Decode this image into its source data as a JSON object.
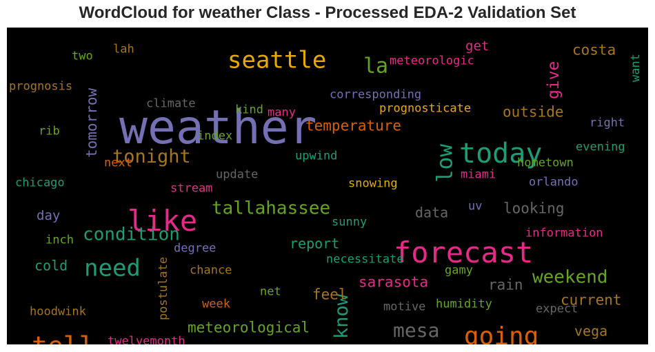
{
  "chart_data": {
    "type": "wordcloud",
    "title": "WordCloud for weather Class - Processed EDA-2 Validation Set",
    "background": "#000000",
    "palette": "Dark2",
    "words": [
      {
        "text": "weather",
        "weight": 100,
        "color": "#7570b3",
        "orientation": "horizontal"
      },
      {
        "text": "forecast",
        "weight": 62,
        "color": "#e7298a",
        "orientation": "horizontal"
      },
      {
        "text": "like",
        "weight": 62,
        "color": "#e7298a",
        "orientation": "horizontal"
      },
      {
        "text": "today",
        "weight": 60,
        "color": "#1b9e77",
        "orientation": "horizontal"
      },
      {
        "text": "tell",
        "weight": 55,
        "color": "#d95f02",
        "orientation": "horizontal"
      },
      {
        "text": "going",
        "weight": 55,
        "color": "#d95f02",
        "orientation": "horizontal"
      },
      {
        "text": "seattle",
        "weight": 50,
        "color": "#e6ab02",
        "orientation": "horizontal"
      },
      {
        "text": "need",
        "weight": 50,
        "color": "#1b9e77",
        "orientation": "horizontal"
      },
      {
        "text": "low",
        "weight": 46,
        "color": "#1b9e77",
        "orientation": "vertical"
      },
      {
        "text": "la",
        "weight": 44,
        "color": "#66a61e",
        "orientation": "horizontal"
      },
      {
        "text": "mesa",
        "weight": 42,
        "color": "#666666",
        "orientation": "horizontal"
      },
      {
        "text": "know",
        "weight": 40,
        "color": "#1b9e77",
        "orientation": "vertical"
      },
      {
        "text": "tonight",
        "weight": 40,
        "color": "#a6761d",
        "orientation": "horizontal"
      },
      {
        "text": "tallahassee",
        "weight": 38,
        "color": "#66a61e",
        "orientation": "horizontal"
      },
      {
        "text": "condition",
        "weight": 38,
        "color": "#1b9e77",
        "orientation": "horizontal"
      },
      {
        "text": "weekend",
        "weight": 38,
        "color": "#66a61e",
        "orientation": "horizontal"
      },
      {
        "text": "give",
        "weight": 34,
        "color": "#e7298a",
        "orientation": "vertical"
      },
      {
        "text": "costa",
        "weight": 31,
        "color": "#a6761d",
        "orientation": "horizontal"
      },
      {
        "text": "outside",
        "weight": 31,
        "color": "#a6761d",
        "orientation": "horizontal"
      },
      {
        "text": "temperature",
        "weight": 31,
        "color": "#d95f02",
        "orientation": "horizontal"
      },
      {
        "text": "tomorrow",
        "weight": 31,
        "color": "#7570b3",
        "orientation": "vertical"
      },
      {
        "text": "looking",
        "weight": 31,
        "color": "#666666",
        "orientation": "horizontal"
      },
      {
        "text": "meteorological",
        "weight": 31,
        "color": "#66a61e",
        "orientation": "horizontal"
      },
      {
        "text": "sarasota",
        "weight": 31,
        "color": "#e7298a",
        "orientation": "horizontal"
      },
      {
        "text": "feel",
        "weight": 31,
        "color": "#a6761d",
        "orientation": "horizontal"
      },
      {
        "text": "rain",
        "weight": 31,
        "color": "#666666",
        "orientation": "horizontal"
      },
      {
        "text": "current",
        "weight": 31,
        "color": "#a6761d",
        "orientation": "horizontal"
      },
      {
        "text": "vega",
        "weight": 29,
        "color": "#a6761d",
        "orientation": "horizontal"
      },
      {
        "text": "data",
        "weight": 29,
        "color": "#666666",
        "orientation": "horizontal"
      },
      {
        "text": "report",
        "weight": 29,
        "color": "#1b9e77",
        "orientation": "horizontal"
      },
      {
        "text": "cold",
        "weight": 29,
        "color": "#1b9e77",
        "orientation": "horizontal"
      },
      {
        "text": "day",
        "weight": 27,
        "color": "#7570b3",
        "orientation": "horizontal"
      },
      {
        "text": "get",
        "weight": 27,
        "color": "#e7298a",
        "orientation": "horizontal"
      },
      {
        "text": "prognosticate",
        "weight": 24,
        "color": "#e6ab02",
        "orientation": "horizontal"
      },
      {
        "text": "corresponding",
        "weight": 24,
        "color": "#7570b3",
        "orientation": "horizontal"
      },
      {
        "text": "meteorologic",
        "weight": 24,
        "color": "#e7298a",
        "orientation": "horizontal"
      },
      {
        "text": "snowing",
        "weight": 24,
        "color": "#e6ab02",
        "orientation": "horizontal"
      },
      {
        "text": "necessitate",
        "weight": 24,
        "color": "#1b9e77",
        "orientation": "horizontal"
      },
      {
        "text": "information",
        "weight": 24,
        "color": "#e7298a",
        "orientation": "horizontal"
      },
      {
        "text": "humidity",
        "weight": 24,
        "color": "#66a61e",
        "orientation": "horizontal"
      },
      {
        "text": "hometown",
        "weight": 24,
        "color": "#66a61e",
        "orientation": "horizontal"
      },
      {
        "text": "evening",
        "weight": 24,
        "color": "#1b9e77",
        "orientation": "horizontal"
      },
      {
        "text": "right",
        "weight": 24,
        "color": "#7570b3",
        "orientation": "horizontal"
      },
      {
        "text": "orlando",
        "weight": 24,
        "color": "#7570b3",
        "orientation": "horizontal"
      },
      {
        "text": "miami",
        "weight": 24,
        "color": "#e7298a",
        "orientation": "horizontal"
      },
      {
        "text": "upwind",
        "weight": 24,
        "color": "#1b9e77",
        "orientation": "horizontal"
      },
      {
        "text": "index",
        "weight": 24,
        "color": "#66a61e",
        "orientation": "horizontal"
      },
      {
        "text": "kind",
        "weight": 24,
        "color": "#66a61e",
        "orientation": "horizontal"
      },
      {
        "text": "many",
        "weight": 24,
        "color": "#e7298a",
        "orientation": "horizontal"
      },
      {
        "text": "climate",
        "weight": 24,
        "color": "#666666",
        "orientation": "horizontal"
      },
      {
        "text": "update",
        "weight": 24,
        "color": "#666666",
        "orientation": "horizontal"
      },
      {
        "text": "stream",
        "weight": 24,
        "color": "#e7298a",
        "orientation": "horizontal"
      },
      {
        "text": "sunny",
        "weight": 24,
        "color": "#1b9e77",
        "orientation": "horizontal"
      },
      {
        "text": "degree",
        "weight": 24,
        "color": "#7570b3",
        "orientation": "horizontal"
      },
      {
        "text": "chance",
        "weight": 24,
        "color": "#a6761d",
        "orientation": "horizontal"
      },
      {
        "text": "postulate",
        "weight": 24,
        "color": "#a6761d",
        "orientation": "vertical"
      },
      {
        "text": "week",
        "weight": 24,
        "color": "#d95f02",
        "orientation": "horizontal"
      },
      {
        "text": "net",
        "weight": 24,
        "color": "#66a61e",
        "orientation": "horizontal"
      },
      {
        "text": "motive",
        "weight": 24,
        "color": "#666666",
        "orientation": "horizontal"
      },
      {
        "text": "gamy",
        "weight": 24,
        "color": "#66a61e",
        "orientation": "horizontal"
      },
      {
        "text": "expect",
        "weight": 24,
        "color": "#666666",
        "orientation": "horizontal"
      },
      {
        "text": "twelvemonth",
        "weight": 24,
        "color": "#e7298a",
        "orientation": "horizontal"
      },
      {
        "text": "hoodwink",
        "weight": 24,
        "color": "#a6761d",
        "orientation": "horizontal"
      },
      {
        "text": "inch",
        "weight": 24,
        "color": "#66a61e",
        "orientation": "horizontal"
      },
      {
        "text": "chicago",
        "weight": 24,
        "color": "#1b9e77",
        "orientation": "horizontal"
      },
      {
        "text": "next",
        "weight": 24,
        "color": "#d95f02",
        "orientation": "horizontal"
      },
      {
        "text": "rib",
        "weight": 24,
        "color": "#66a61e",
        "orientation": "horizontal"
      },
      {
        "text": "prognosis",
        "weight": 24,
        "color": "#a6761d",
        "orientation": "horizontal"
      },
      {
        "text": "two",
        "weight": 24,
        "color": "#66a61e",
        "orientation": "horizontal"
      },
      {
        "text": "lah",
        "weight": 24,
        "color": "#a6761d",
        "orientation": "horizontal"
      },
      {
        "text": "want",
        "weight": 24,
        "color": "#1b9e77",
        "orientation": "vertical"
      },
      {
        "text": "uv",
        "weight": 24,
        "color": "#7570b3",
        "orientation": "horizontal"
      }
    ]
  }
}
